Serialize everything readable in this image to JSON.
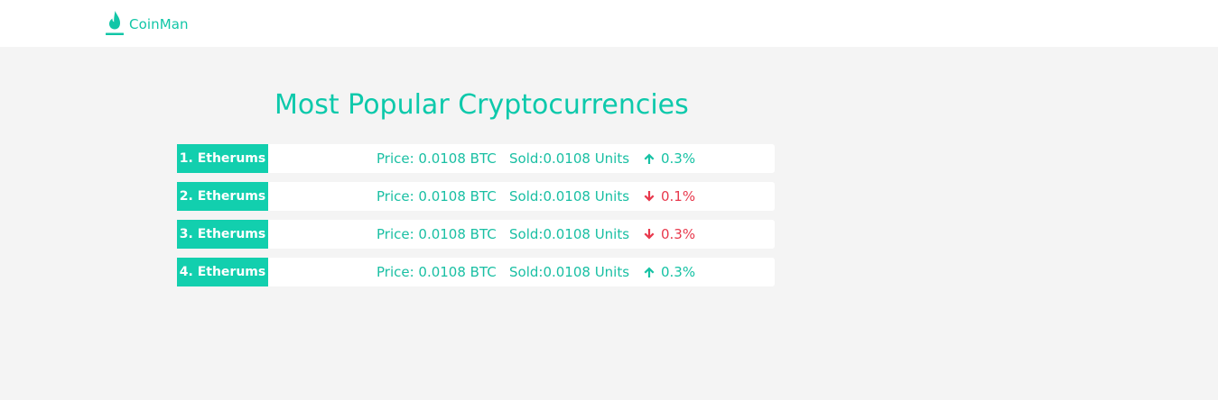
{
  "brand": {
    "name": "CoinMan",
    "logo_icon": "flame-drop-icon",
    "color": "#11c6a7"
  },
  "page": {
    "title": "Most Popular Cryptocurrencies"
  },
  "currencies": [
    {
      "label": "1. Etherums",
      "price": "Price: 0.0108 BTC",
      "sold": "Sold:0.0108 Units",
      "change": "0.3%",
      "direction": "up"
    },
    {
      "label": "2. Etherums",
      "price": "Price: 0.0108 BTC",
      "sold": "Sold:0.0108 Units",
      "change": "0.1%",
      "direction": "down"
    },
    {
      "label": "3. Etherums",
      "price": "Price: 0.0108 BTC",
      "sold": "Sold:0.0108 Units",
      "change": "0.3%",
      "direction": "down"
    },
    {
      "label": "4. Etherums",
      "price": "Price: 0.0108 BTC",
      "sold": "Sold:0.0108 Units",
      "change": "0.3%",
      "direction": "up"
    }
  ],
  "colors": {
    "accent": "#12cfae",
    "up": "#16c2a4",
    "down": "#e8394d",
    "background": "#f4f4f4"
  }
}
